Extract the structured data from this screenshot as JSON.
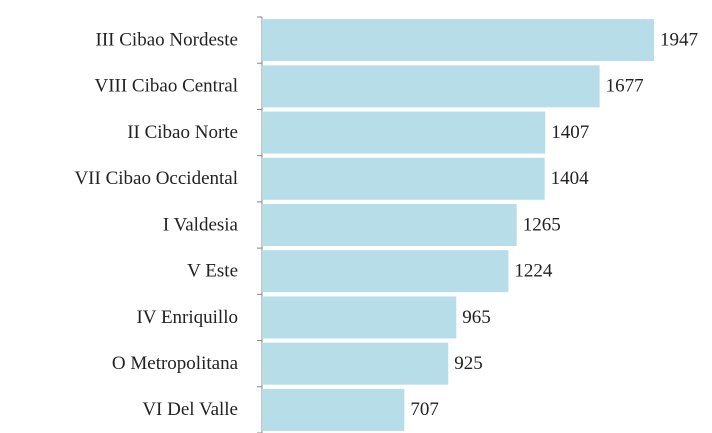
{
  "chart_data": {
    "type": "hbar",
    "categories": [
      "III Cibao Nordeste",
      "VIII Cibao Central",
      "II Cibao Norte",
      "VII Cibao Occidental",
      "I Valdesia",
      "V Este",
      "IV Enriquillo",
      "O Metropolitana",
      "VI Del Valle"
    ],
    "values": [
      1947,
      1677,
      1407,
      1404,
      1265,
      1224,
      965,
      925,
      707
    ],
    "color": "#b7dde8"
  }
}
